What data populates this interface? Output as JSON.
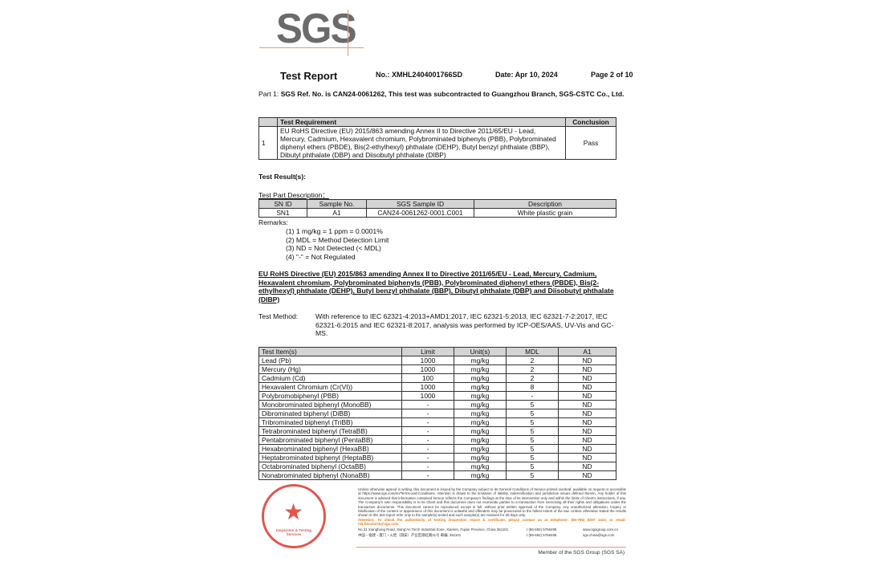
{
  "logo": "SGS",
  "header": {
    "title": "Test Report",
    "number": "No.: XMHL2404001766SD",
    "date": "Date: Apr 10, 2024",
    "page": "Page 2 of  10"
  },
  "part1": {
    "prefix": "Part 1: ",
    "text": "SGS Ref. No. is CAN24-0061262, This test was subcontracted to Guangzhou Branch, SGS-CSTC Co., Ltd."
  },
  "requirement_table": {
    "headers": [
      "",
      "Test Requirement",
      "Conclusion"
    ],
    "rows": [
      {
        "no": "1",
        "requirement": "EU RoHS Directive (EU) 2015/863 amending Annex II to Directive 2011/65/EU - Lead, Mercury, Cadmium, Hexavalent chromium, Polybrominated biphenyls (PBB), Polybrominated diphenyl ethers (PBDE), Bis(2-ethylhexyl) phthalate (DEHP), Butyl benzyl phthalate (BBP), Dibutyl phthalate (DBP) and Diisobutyl phthalate (DIBP)",
        "conclusion": "Pass"
      }
    ]
  },
  "results_heading": "Test Result(s):",
  "part_description_label": "Test Part Description：",
  "sample_table": {
    "headers": [
      "SN ID",
      "Sample No.",
      "SGS Sample ID",
      "Description"
    ],
    "rows": [
      [
        "SN1",
        "A1",
        "CAN24-0061262-0001.C001",
        "White plastic grain"
      ]
    ]
  },
  "remarks": {
    "label": "Remarks:",
    "items": [
      "(1)  1 mg/kg = 1 ppm = 0.0001%",
      "(2)  MDL = Method Detection Limit",
      "(3)  ND = Not Detected (< MDL)",
      "(4)  \"-\" = Not Regulated"
    ]
  },
  "section_heading": "EU RoHS Directive (EU) 2015/863 amending Annex II to Directive 2011/65/EU - Lead, Mercury, Cadmium, Hexavalent chromium, Polybrominated biphenyls (PBB), Polybrominated diphenyl ethers (PBDE), Bis(2-ethylhexyl) phthalate (DEHP), Butyl benzyl phthalate (BBP), Dibutyl phthalate (DBP) and Diisobutyl phthalate (DIBP)",
  "test_method": {
    "label": "Test Method:",
    "text": "With reference to IEC 62321-4:2013+AMD1:2017, IEC 62321-5:2013, IEC 62321-7-2:2017, IEC 62321-6:2015 and IEC 62321-8:2017, analysis was performed by ICP-OES/AAS, UV-Vis and GC-MS."
  },
  "results_table": {
    "headers": [
      "Test Item(s)",
      "Limit",
      "Unit(s)",
      "MDL",
      "A1"
    ],
    "rows": [
      [
        "Lead (Pb)",
        "1000",
        "mg/kg",
        "2",
        "ND"
      ],
      [
        "Mercury (Hg)",
        "1000",
        "mg/kg",
        "2",
        "ND"
      ],
      [
        "Cadmium (Cd)",
        "100",
        "mg/kg",
        "2",
        "ND"
      ],
      [
        "Hexavalent Chromium (Cr(VI))",
        "1000",
        "mg/kg",
        "8",
        "ND"
      ],
      [
        "Polybromobiphenyl (PBB)",
        "1000",
        "mg/kg",
        "-",
        "ND"
      ],
      [
        "Monobrominated biphenyl (MonoBB)",
        "-",
        "mg/kg",
        "5",
        "ND"
      ],
      [
        "Dibrominated biphenyl (DiBB)",
        "-",
        "mg/kg",
        "5",
        "ND"
      ],
      [
        "Tribrominated biphenyl (TriBB)",
        "-",
        "mg/kg",
        "5",
        "ND"
      ],
      [
        "Tetrabrominated biphenyl (TetraBB)",
        "-",
        "mg/kg",
        "5",
        "ND"
      ],
      [
        "Pentabrominated biphenyl (PentaBB)",
        "-",
        "mg/kg",
        "5",
        "ND"
      ],
      [
        "Hexabrominated biphenyl (HexaBB)",
        "-",
        "mg/kg",
        "5",
        "ND"
      ],
      [
        "Heptabrominated biphenyl (HeptaBB)",
        "-",
        "mg/kg",
        "5",
        "ND"
      ],
      [
        "Octabrominated biphenyl (OctaBB)",
        "-",
        "mg/kg",
        "5",
        "ND"
      ],
      [
        "Nonabrominated biphenyl (NonaBB)",
        "-",
        "mg/kg",
        "5",
        "ND"
      ]
    ]
  },
  "footer": {
    "stamp_text": "Inspection & Testing Services",
    "disclaimer": "Unless otherwise agreed in writing, this document is issued by the Company subject to its General Conditions of Service printed overleaf, available on request or accessible at https://www.sgs.com/en/Terms-and-Conditions. Attention is drawn to the limitation of liability, indemnification and jurisdiction issues defined therein. Any holder of this document is advised that information contained hereon reflects the Company's findings at the time of its intervention only and within the limits of Client's instructions, if any. The Company's sole responsibility is to its Client and this document does not exonerate parties to a transaction from exercising all their rights and obligations under the transaction documents. This document cannot be reproduced except in full, without prior written approval of the Company. Any unauthorized alteration, forgery or falsification of the content or appearance of this document is unlawful and offenders may be prosecuted to the fullest extent of the law. Unless otherwise stated the results shown in this test report refer only to the sample(s) tested and such sample(s) are retained for 30 days only.",
    "attention": "Attention: To check the authenticity of testing /inspection report & certificate, please contact us at telephone: (86-755) 8307 1443, or email: CN.Doccheck@sgs.com",
    "address_en": "No.31 Xianghong Road, Xiang'An Torch Industrial Zone, Xiamen, Fujian Province, China  361101",
    "address_cn": "中国・福建・厦门・火炬（翔安）产业区翔虹路31号       邮编: 361101",
    "phone1": "t (86-592) 5766488",
    "phone2": "t (86-592) 5766488",
    "web1": "www.sgsgroup.com.cn",
    "web2": "sgs.china@sgs.com",
    "member": "Member of the SGS Group (SGS SA)"
  }
}
